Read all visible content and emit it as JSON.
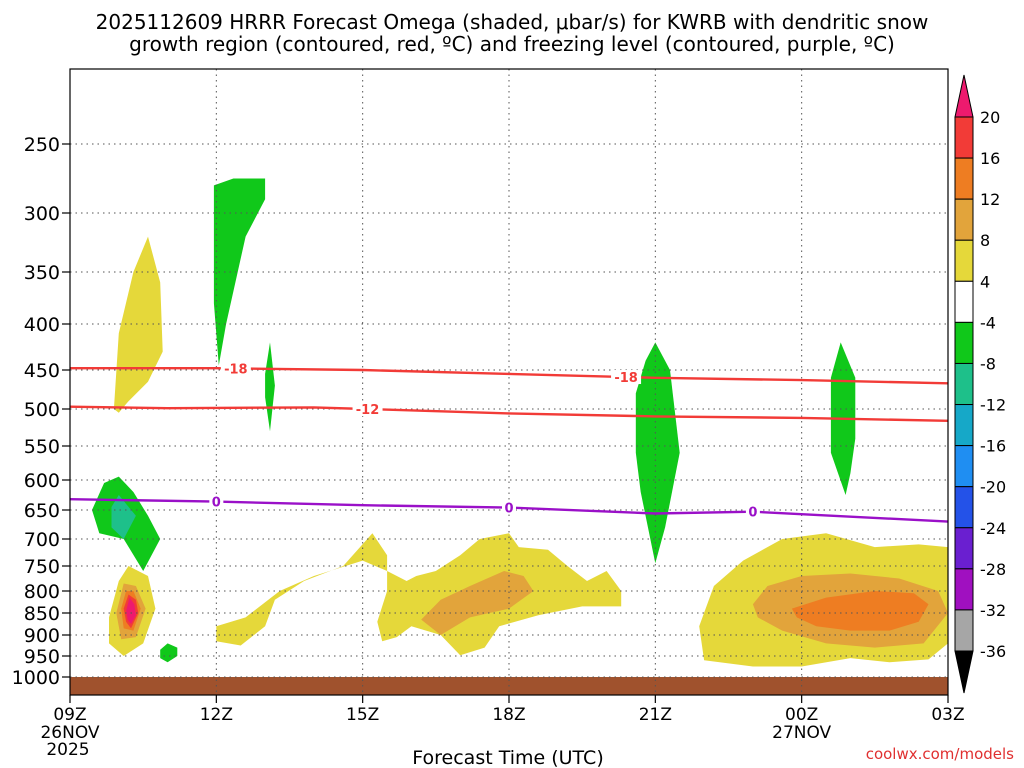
{
  "chart_data": {
    "type": "heatmap",
    "title_line1": "2025112609 HRRR Forecast Omega (shaded, μbar/s) for KWRB with dendritic snow",
    "title_line2": "growth region (contoured, red, ºC) and freezing level (contoured, purple, ºC)",
    "xlabel": "Forecast Time (UTC)",
    "credit": "coolwx.com/models",
    "x_range_hours": [
      0,
      18
    ],
    "x_ticks": [
      {
        "h": 0,
        "label": "09Z",
        "sub": "26NOV",
        "sub2": "2025"
      },
      {
        "h": 3,
        "label": "12Z"
      },
      {
        "h": 6,
        "label": "15Z"
      },
      {
        "h": 9,
        "label": "18Z"
      },
      {
        "h": 12,
        "label": "21Z"
      },
      {
        "h": 15,
        "label": "00Z",
        "sub": "27NOV"
      },
      {
        "h": 18,
        "label": "03Z"
      }
    ],
    "y_ticks": [
      250,
      300,
      350,
      400,
      450,
      500,
      550,
      600,
      650,
      700,
      750,
      800,
      850,
      900,
      950,
      1000
    ],
    "y_range_mb": [
      200,
      1020
    ],
    "colorbar": {
      "labels": [
        "20",
        "16",
        "12",
        "8",
        "4",
        "-4",
        "-8",
        "-12",
        "-16",
        "-20",
        "-24",
        "-28",
        "-32",
        "-36"
      ],
      "colors": [
        "#ed1a6e",
        "#f23b37",
        "#ee7d22",
        "#e2a43b",
        "#e5d83a",
        "#ffffff",
        "#10c81a",
        "#1ec08a",
        "#16a8c8",
        "#1f8ef2",
        "#2452e8",
        "#6a1fd0",
        "#a010c0",
        "#a6a6a6",
        "#000000"
      ]
    },
    "contours": [
      {
        "name": "dgz-top",
        "label": "-18",
        "color": "#f23b37",
        "points": [
          [
            0,
            448
          ],
          [
            3,
            448
          ],
          [
            6,
            450
          ],
          [
            9,
            455
          ],
          [
            12,
            460
          ],
          [
            15,
            463
          ],
          [
            18,
            467
          ]
        ],
        "label_h": [
          3.4,
          11.4
        ]
      },
      {
        "name": "dgz-bottom",
        "label": "-12",
        "color": "#f23b37",
        "points": [
          [
            0,
            497
          ],
          [
            2,
            499
          ],
          [
            5,
            498
          ],
          [
            9,
            506
          ],
          [
            12,
            510
          ],
          [
            15,
            512
          ],
          [
            18,
            516
          ]
        ],
        "label_h": [
          6.1
        ]
      },
      {
        "name": "freezing-level",
        "label": "0",
        "color": "#9a10c8",
        "points": [
          [
            0,
            632
          ],
          [
            3,
            636
          ],
          [
            6,
            642
          ],
          [
            9,
            646
          ],
          [
            12,
            656
          ],
          [
            14,
            653
          ],
          [
            18,
            670
          ]
        ],
        "label_h": [
          3.0,
          9.0,
          14.0
        ]
      }
    ],
    "shaded_regions": [
      {
        "name": "omega-pos-4",
        "color": "#e5d83a",
        "polygon": [
          [
            0.9,
            500
          ],
          [
            1.0,
            410
          ],
          [
            1.3,
            350
          ],
          [
            1.6,
            320
          ],
          [
            1.85,
            360
          ],
          [
            1.9,
            430
          ],
          [
            1.6,
            465
          ],
          [
            1.2,
            490
          ],
          [
            1.0,
            505
          ]
        ]
      },
      {
        "name": "omega-neg-8",
        "color": "#10c81a",
        "polygon": [
          [
            2.95,
            280
          ],
          [
            3.35,
            275
          ],
          [
            4.0,
            275
          ],
          [
            4.0,
            290
          ],
          [
            3.6,
            320
          ],
          [
            3.2,
            400
          ],
          [
            3.05,
            445
          ],
          [
            2.95,
            380
          ]
        ]
      },
      {
        "name": "omega-neg-8",
        "color": "#10c81a",
        "polygon": [
          [
            4.0,
            455
          ],
          [
            4.1,
            420
          ],
          [
            4.2,
            470
          ],
          [
            4.1,
            530
          ],
          [
            4.0,
            485
          ]
        ]
      },
      {
        "name": "omega-neg-8",
        "color": "#10c81a",
        "polygon": [
          [
            11.6,
            480
          ],
          [
            11.8,
            440
          ],
          [
            12.0,
            420
          ],
          [
            12.3,
            450
          ],
          [
            12.5,
            560
          ],
          [
            12.2,
            680
          ],
          [
            12.0,
            745
          ],
          [
            11.7,
            620
          ],
          [
            11.6,
            560
          ]
        ]
      },
      {
        "name": "omega-neg-8",
        "color": "#10c81a",
        "polygon": [
          [
            15.6,
            460
          ],
          [
            15.8,
            420
          ],
          [
            16.1,
            460
          ],
          [
            16.1,
            540
          ],
          [
            16.0,
            590
          ],
          [
            15.9,
            625
          ],
          [
            15.6,
            560
          ]
        ]
      },
      {
        "name": "omega-neg-8",
        "color": "#10c81a",
        "polygon": [
          [
            0.45,
            650
          ],
          [
            0.7,
            605
          ],
          [
            1.0,
            595
          ],
          [
            1.3,
            620
          ],
          [
            1.6,
            660
          ],
          [
            1.85,
            700
          ],
          [
            1.5,
            760
          ],
          [
            1.1,
            700
          ],
          [
            0.6,
            690
          ]
        ]
      },
      {
        "name": "omega-neg-12",
        "color": "#1ec08a",
        "polygon": [
          [
            0.85,
            645
          ],
          [
            1.0,
            625
          ],
          [
            1.35,
            660
          ],
          [
            1.1,
            700
          ],
          [
            0.85,
            680
          ]
        ]
      },
      {
        "name": "omega-neg-8",
        "color": "#10c81a",
        "polygon": [
          [
            1.85,
            935
          ],
          [
            2.0,
            920
          ],
          [
            2.2,
            930
          ],
          [
            2.2,
            950
          ],
          [
            2.0,
            965
          ],
          [
            1.85,
            955
          ]
        ]
      },
      {
        "name": "omega-pos-4",
        "color": "#e5d83a",
        "polygon": [
          [
            0.8,
            860
          ],
          [
            1.0,
            780
          ],
          [
            1.2,
            750
          ],
          [
            1.6,
            770
          ],
          [
            1.75,
            840
          ],
          [
            1.5,
            920
          ],
          [
            1.1,
            950
          ],
          [
            0.8,
            920
          ]
        ]
      },
      {
        "name": "omega-pos-8",
        "color": "#e2a43b",
        "polygon": [
          [
            0.95,
            850
          ],
          [
            1.1,
            785
          ],
          [
            1.35,
            790
          ],
          [
            1.55,
            840
          ],
          [
            1.35,
            905
          ],
          [
            1.05,
            910
          ]
        ]
      },
      {
        "name": "omega-pos-12",
        "color": "#ee7d22",
        "polygon": [
          [
            1.05,
            840
          ],
          [
            1.15,
            800
          ],
          [
            1.3,
            800
          ],
          [
            1.45,
            840
          ],
          [
            1.3,
            890
          ],
          [
            1.1,
            885
          ]
        ]
      },
      {
        "name": "omega-pos-16",
        "color": "#f23b37",
        "polygon": [
          [
            1.1,
            840
          ],
          [
            1.2,
            808
          ],
          [
            1.35,
            820
          ],
          [
            1.4,
            850
          ],
          [
            1.25,
            885
          ],
          [
            1.15,
            870
          ]
        ]
      },
      {
        "name": "omega-pos-20",
        "color": "#ed1a6e",
        "polygon": [
          [
            1.15,
            845
          ],
          [
            1.22,
            815
          ],
          [
            1.32,
            830
          ],
          [
            1.35,
            855
          ],
          [
            1.25,
            875
          ],
          [
            1.18,
            865
          ]
        ]
      },
      {
        "name": "omega-pos-4",
        "color": "#e5d83a",
        "polygon": [
          [
            3.0,
            915
          ],
          [
            3.5,
            925
          ],
          [
            4.0,
            880
          ],
          [
            4.2,
            820
          ],
          [
            4.8,
            780
          ],
          [
            5.6,
            750
          ],
          [
            6.2,
            690
          ],
          [
            6.5,
            730
          ],
          [
            6.5,
            800
          ],
          [
            6.3,
            870
          ],
          [
            6.4,
            915
          ],
          [
            6.7,
            905
          ],
          [
            7.0,
            880
          ],
          [
            7.6,
            900
          ],
          [
            8.0,
            948
          ],
          [
            8.5,
            930
          ],
          [
            8.8,
            880
          ],
          [
            9.6,
            855
          ],
          [
            10.5,
            835
          ],
          [
            11.3,
            835
          ],
          [
            11.3,
            800
          ],
          [
            11.0,
            760
          ],
          [
            10.6,
            780
          ],
          [
            10.2,
            750
          ],
          [
            9.8,
            720
          ],
          [
            9.2,
            715
          ],
          [
            9.0,
            690
          ],
          [
            8.4,
            700
          ],
          [
            8.0,
            730
          ],
          [
            7.5,
            760
          ],
          [
            7.1,
            770
          ],
          [
            6.9,
            780
          ],
          [
            6.5,
            760
          ],
          [
            6.0,
            740
          ],
          [
            5.0,
            770
          ],
          [
            4.3,
            800
          ],
          [
            3.6,
            860
          ],
          [
            3.0,
            880
          ]
        ]
      },
      {
        "name": "omega-pos-8",
        "color": "#e2a43b",
        "polygon": [
          [
            7.2,
            865
          ],
          [
            7.6,
            820
          ],
          [
            8.2,
            790
          ],
          [
            8.9,
            760
          ],
          [
            9.3,
            770
          ],
          [
            9.5,
            800
          ],
          [
            9.0,
            840
          ],
          [
            8.2,
            860
          ],
          [
            7.6,
            900
          ]
        ]
      },
      {
        "name": "omega-pos-4",
        "color": "#e5d83a",
        "polygon": [
          [
            13.0,
            960
          ],
          [
            12.9,
            880
          ],
          [
            13.2,
            790
          ],
          [
            13.8,
            740
          ],
          [
            14.6,
            700
          ],
          [
            15.5,
            690
          ],
          [
            16.5,
            715
          ],
          [
            17.4,
            710
          ],
          [
            18.0,
            715
          ],
          [
            18.0,
            920
          ],
          [
            17.6,
            958
          ],
          [
            16.8,
            965
          ],
          [
            16.0,
            955
          ],
          [
            15.0,
            975
          ],
          [
            14.0,
            975
          ]
        ]
      },
      {
        "name": "omega-pos-8",
        "color": "#e2a43b",
        "polygon": [
          [
            14.0,
            830
          ],
          [
            14.3,
            790
          ],
          [
            15.0,
            770
          ],
          [
            16.0,
            765
          ],
          [
            17.0,
            775
          ],
          [
            17.8,
            800
          ],
          [
            18.0,
            850
          ],
          [
            17.5,
            920
          ],
          [
            16.5,
            930
          ],
          [
            15.5,
            920
          ],
          [
            14.6,
            890
          ],
          [
            14.1,
            860
          ]
        ]
      },
      {
        "name": "omega-pos-12",
        "color": "#ee7d22",
        "polygon": [
          [
            14.8,
            840
          ],
          [
            15.5,
            815
          ],
          [
            16.5,
            800
          ],
          [
            17.3,
            805
          ],
          [
            17.6,
            830
          ],
          [
            17.4,
            870
          ],
          [
            16.8,
            890
          ],
          [
            16.0,
            890
          ],
          [
            15.3,
            880
          ],
          [
            14.9,
            860
          ]
        ]
      }
    ]
  }
}
